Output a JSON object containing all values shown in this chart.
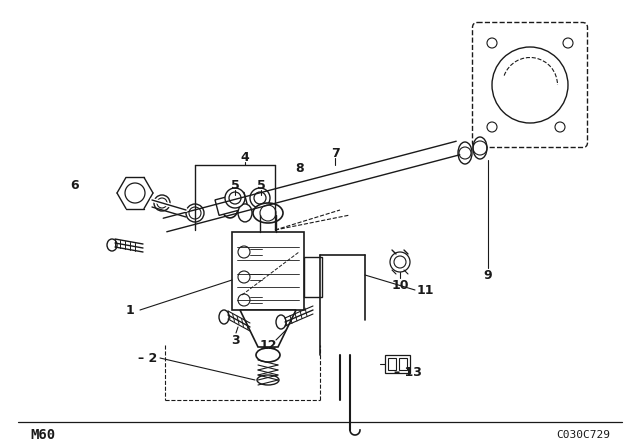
{
  "bg_color": "#ffffff",
  "line_color": "#1a1a1a",
  "fig_width": 6.4,
  "fig_height": 4.48,
  "dpi": 100,
  "bottom_left_text": "M60",
  "bottom_right_text": "C030C729"
}
